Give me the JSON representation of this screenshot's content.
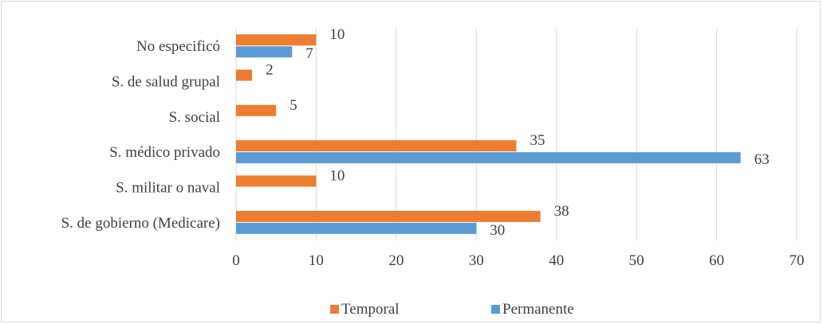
{
  "chart_data": {
    "type": "bar",
    "orientation": "horizontal",
    "categories": [
      "No especificó",
      "S. de salud grupal",
      "S. social",
      "S. médico privado",
      "S. militar o naval",
      "S. de gobierno (Medicare)"
    ],
    "series": [
      {
        "name": "Temporal",
        "color": "#ED7D31",
        "values": [
          10,
          2,
          5,
          35,
          10,
          38
        ]
      },
      {
        "name": "Permanente",
        "color": "#5B9BD5",
        "values": [
          7,
          null,
          null,
          63,
          null,
          30
        ]
      }
    ],
    "xlim": [
      0,
      70
    ],
    "xticks": [
      0,
      10,
      20,
      30,
      40,
      50,
      60,
      70
    ],
    "grid": true,
    "legend": "bottom",
    "data_labels": true
  }
}
